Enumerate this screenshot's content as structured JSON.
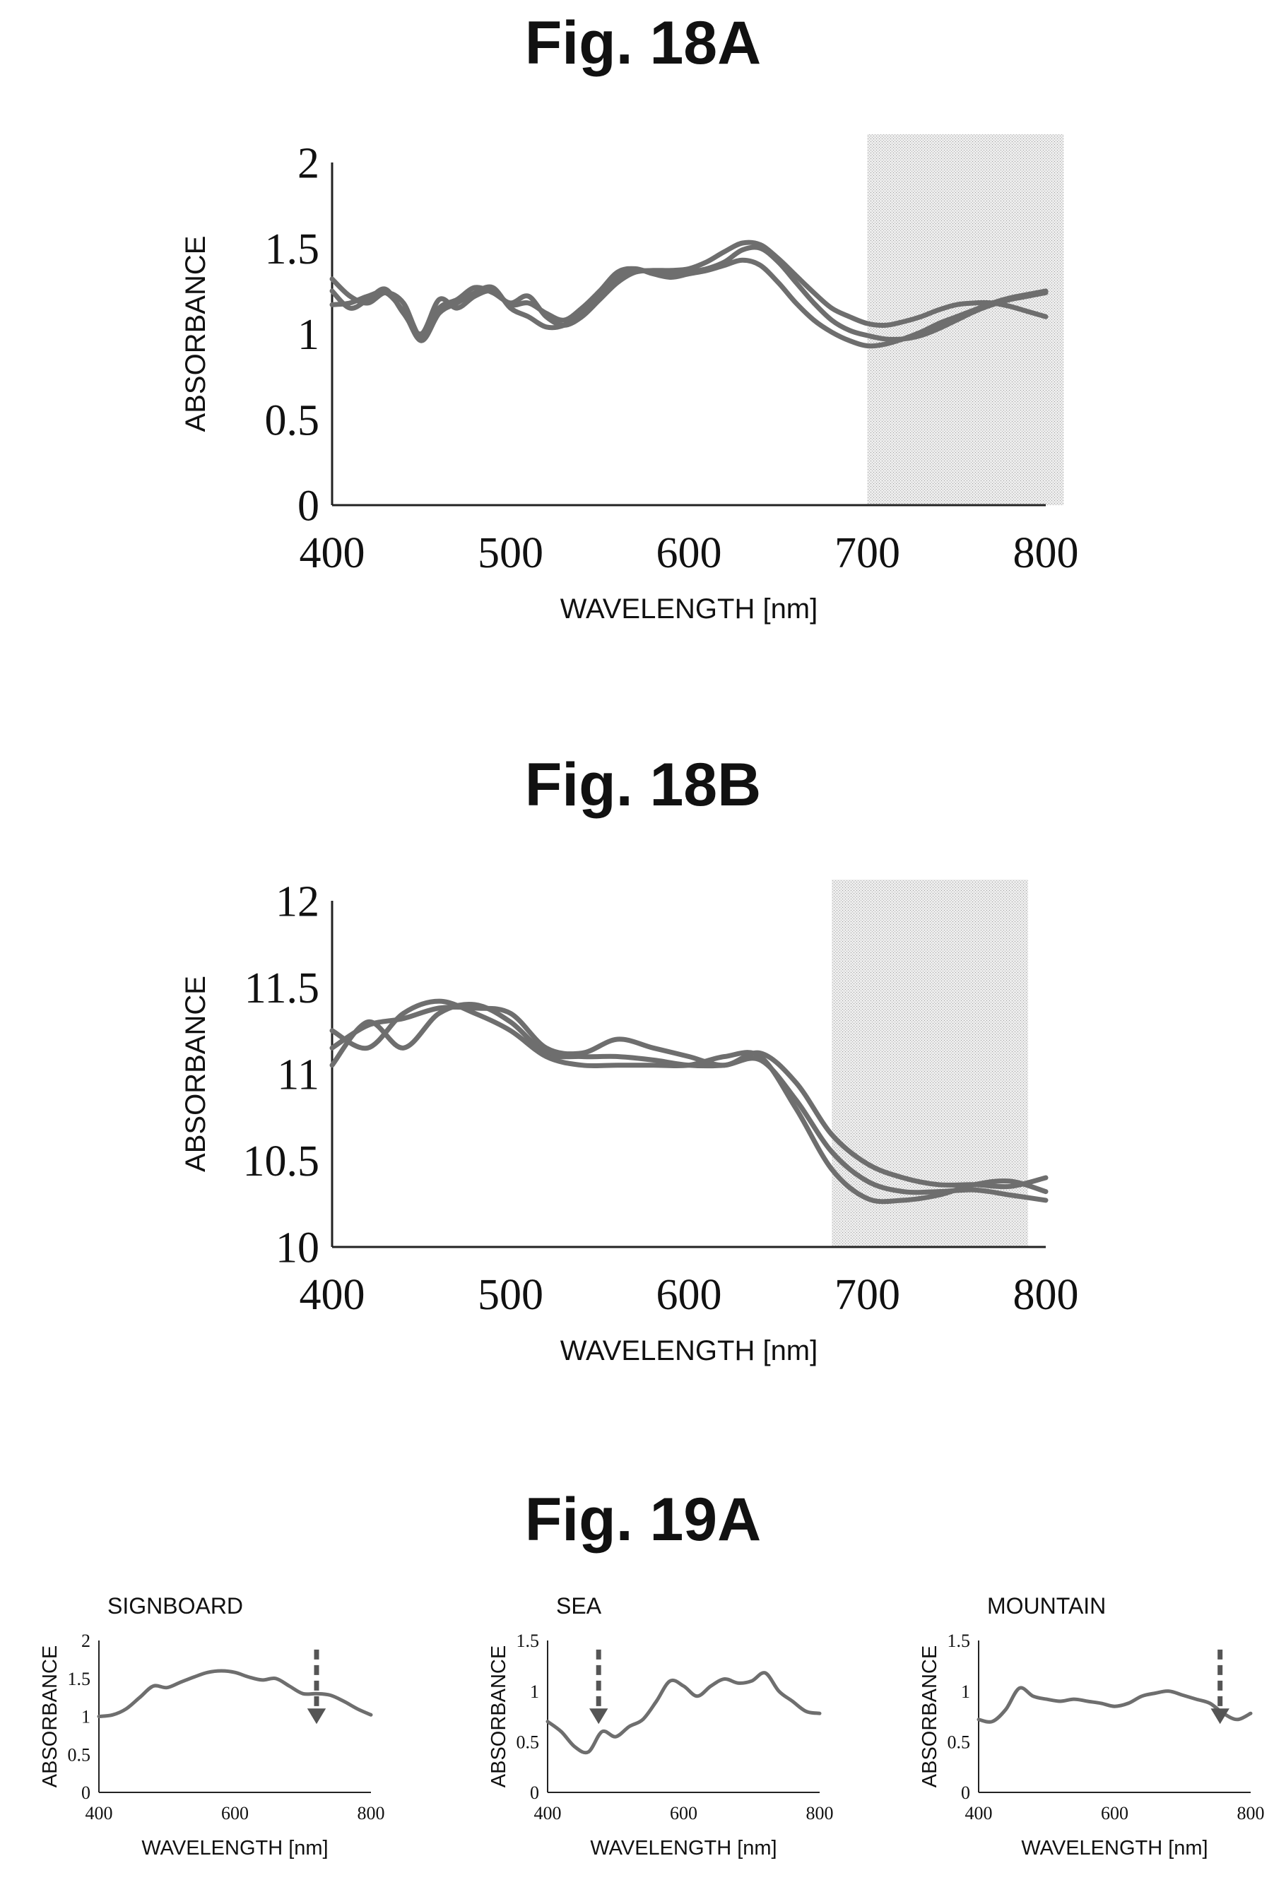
{
  "figures": [
    {
      "id": "fig18a",
      "title": "Fig. 18A",
      "chart_data": {
        "type": "line",
        "xlabel": "WAVELENGTH [nm]",
        "ylabel": "ABSORBANCE",
        "xlim": [
          400,
          800
        ],
        "ylim": [
          0,
          2
        ],
        "xticks": [
          "400",
          "500",
          "600",
          "700",
          "800"
        ],
        "yticks": [
          "0",
          "0.5",
          "1",
          "1.5",
          "2"
        ],
        "shaded_band": [
          700,
          810
        ],
        "grid": false,
        "series_color": "#6e6e6e",
        "series": [
          {
            "x": [
              400,
              410,
              420,
              430,
              440,
              450,
              460,
              470,
              480,
              490,
              500,
              510,
              520,
              530,
              540,
              550,
              560,
              570,
              580,
              590,
              600,
              610,
              620,
              630,
              640,
              650,
              660,
              670,
              680,
              690,
              700,
              710,
              720,
              730,
              740,
              750,
              760,
              770,
              780,
              790,
              800
            ],
            "values": [
              1.17,
              1.18,
              1.22,
              1.24,
              1.13,
              0.96,
              1.12,
              1.18,
              1.24,
              1.27,
              1.15,
              1.1,
              1.04,
              1.05,
              1.12,
              1.22,
              1.33,
              1.37,
              1.36,
              1.35,
              1.36,
              1.38,
              1.42,
              1.49,
              1.5,
              1.42,
              1.3,
              1.18,
              1.08,
              1.02,
              0.99,
              0.97,
              0.97,
              0.99,
              1.03,
              1.08,
              1.13,
              1.17,
              1.2,
              1.22,
              1.24
            ]
          },
          {
            "x": [
              400,
              410,
              420,
              430,
              440,
              450,
              460,
              470,
              480,
              490,
              500,
              510,
              520,
              530,
              540,
              550,
              560,
              570,
              580,
              590,
              600,
              610,
              620,
              630,
              640,
              650,
              660,
              670,
              680,
              690,
              700,
              710,
              720,
              730,
              740,
              750,
              760,
              770,
              780,
              790,
              800
            ],
            "values": [
              1.25,
              1.15,
              1.2,
              1.26,
              1.12,
              1.0,
              1.2,
              1.15,
              1.22,
              1.25,
              1.17,
              1.18,
              1.12,
              1.08,
              1.15,
              1.25,
              1.36,
              1.38,
              1.35,
              1.33,
              1.35,
              1.37,
              1.4,
              1.43,
              1.4,
              1.3,
              1.18,
              1.08,
              1.01,
              0.96,
              0.93,
              0.94,
              0.97,
              1.01,
              1.06,
              1.1,
              1.14,
              1.18,
              1.21,
              1.23,
              1.25
            ]
          },
          {
            "x": [
              400,
              410,
              420,
              430,
              440,
              450,
              460,
              470,
              480,
              490,
              500,
              510,
              520,
              530,
              540,
              550,
              560,
              570,
              580,
              590,
              600,
              610,
              620,
              630,
              640,
              650,
              660,
              670,
              680,
              690,
              700,
              710,
              720,
              730,
              740,
              750,
              760,
              770,
              780,
              790,
              800
            ],
            "values": [
              1.32,
              1.22,
              1.18,
              1.24,
              1.18,
              0.98,
              1.15,
              1.2,
              1.27,
              1.24,
              1.18,
              1.22,
              1.1,
              1.05,
              1.1,
              1.2,
              1.3,
              1.36,
              1.37,
              1.37,
              1.38,
              1.42,
              1.48,
              1.53,
              1.52,
              1.44,
              1.34,
              1.24,
              1.15,
              1.1,
              1.06,
              1.05,
              1.07,
              1.1,
              1.14,
              1.17,
              1.18,
              1.18,
              1.16,
              1.13,
              1.1
            ]
          }
        ]
      }
    },
    {
      "id": "fig18b",
      "title": "Fig. 18B",
      "chart_data": {
        "type": "line",
        "xlabel": "WAVELENGTH [nm]",
        "ylabel": "ABSORBANCE",
        "xlim": [
          400,
          800
        ],
        "ylim": [
          10,
          12
        ],
        "xticks": [
          "400",
          "500",
          "600",
          "700",
          "800"
        ],
        "yticks": [
          "10",
          "10.5",
          "11",
          "11.5",
          "12"
        ],
        "shaded_band": [
          680,
          790
        ],
        "grid": false,
        "series_color": "#6e6e6e",
        "series": [
          {
            "x": [
              400,
              420,
              440,
              460,
              480,
              500,
              520,
              540,
              560,
              580,
              600,
              620,
              640,
              660,
              680,
              700,
              720,
              740,
              760,
              780,
              800
            ],
            "values": [
              11.05,
              11.3,
              11.15,
              11.35,
              11.4,
              11.3,
              11.12,
              11.1,
              11.1,
              11.08,
              11.05,
              11.05,
              11.08,
              10.85,
              10.55,
              10.38,
              10.32,
              10.32,
              10.33,
              10.3,
              10.27
            ]
          },
          {
            "x": [
              400,
              420,
              440,
              460,
              480,
              500,
              520,
              540,
              560,
              580,
              600,
              620,
              640,
              660,
              680,
              700,
              720,
              740,
              760,
              780,
              800
            ],
            "values": [
              11.15,
              11.28,
              11.32,
              11.38,
              11.38,
              11.35,
              11.15,
              11.12,
              11.2,
              11.15,
              11.1,
              11.05,
              11.12,
              10.95,
              10.65,
              10.48,
              10.4,
              10.36,
              10.36,
              10.35,
              10.4
            ]
          },
          {
            "x": [
              400,
              420,
              440,
              460,
              480,
              500,
              520,
              540,
              560,
              580,
              600,
              620,
              640,
              660,
              680,
              700,
              720,
              740,
              760,
              780,
              800
            ],
            "values": [
              11.25,
              11.15,
              11.35,
              11.42,
              11.35,
              11.25,
              11.1,
              11.05,
              11.05,
              11.05,
              11.05,
              11.1,
              11.1,
              10.8,
              10.45,
              10.28,
              10.27,
              10.3,
              10.36,
              10.38,
              10.32
            ]
          }
        ]
      }
    },
    {
      "id": "fig19a",
      "title": "Fig. 19A",
      "panels": [
        {
          "chart_data": {
            "type": "line",
            "title": "SIGNBOARD",
            "xlabel": "WAVELENGTH [nm]",
            "ylabel": "ABSORBANCE",
            "xlim": [
              400,
              800
            ],
            "ylim": [
              0,
              2
            ],
            "xticks": [
              "400",
              "600",
              "800"
            ],
            "yticks": [
              "0",
              "0.5",
              "1",
              "1.5",
              "2"
            ],
            "arrow_x": 720,
            "grid": false,
            "series_color": "#6e6e6e",
            "series": [
              {
                "x": [
                  400,
                  420,
                  440,
                  460,
                  480,
                  500,
                  520,
                  540,
                  560,
                  580,
                  600,
                  620,
                  640,
                  660,
                  680,
                  700,
                  720,
                  740,
                  760,
                  780,
                  800
                ],
                "values": [
                  1.0,
                  1.02,
                  1.1,
                  1.25,
                  1.4,
                  1.38,
                  1.45,
                  1.52,
                  1.58,
                  1.6,
                  1.58,
                  1.52,
                  1.48,
                  1.5,
                  1.4,
                  1.3,
                  1.3,
                  1.28,
                  1.2,
                  1.1,
                  1.02
                ]
              }
            ]
          }
        },
        {
          "chart_data": {
            "type": "line",
            "title": "SEA",
            "xlabel": "WAVELENGTH [nm]",
            "ylabel": "ABSORBANCE",
            "xlim": [
              400,
              800
            ],
            "ylim": [
              0,
              1.5
            ],
            "xticks": [
              "400",
              "600",
              "800"
            ],
            "yticks": [
              "0",
              "0.5",
              "1",
              "1.5"
            ],
            "arrow_x": 475,
            "grid": false,
            "series_color": "#6e6e6e",
            "series": [
              {
                "x": [
                  400,
                  420,
                  440,
                  460,
                  480,
                  500,
                  520,
                  540,
                  560,
                  580,
                  600,
                  620,
                  640,
                  660,
                  680,
                  700,
                  720,
                  740,
                  760,
                  780,
                  800
                ],
                "values": [
                  0.7,
                  0.6,
                  0.45,
                  0.4,
                  0.6,
                  0.55,
                  0.65,
                  0.72,
                  0.9,
                  1.1,
                  1.05,
                  0.95,
                  1.05,
                  1.12,
                  1.08,
                  1.1,
                  1.18,
                  1.0,
                  0.9,
                  0.8,
                  0.78
                ]
              }
            ]
          }
        },
        {
          "chart_data": {
            "type": "line",
            "title": "MOUNTAIN",
            "xlabel": "WAVELENGTH [nm]",
            "ylabel": "ABSORBANCE",
            "xlim": [
              400,
              800
            ],
            "ylim": [
              0,
              1.5
            ],
            "xticks": [
              "400",
              "600",
              "800"
            ],
            "yticks": [
              "0",
              "0.5",
              "1",
              "1.5"
            ],
            "arrow_x": 755,
            "grid": false,
            "series_color": "#6e6e6e",
            "series": [
              {
                "x": [
                  400,
                  420,
                  440,
                  460,
                  480,
                  500,
                  520,
                  540,
                  560,
                  580,
                  600,
                  620,
                  640,
                  660,
                  680,
                  700,
                  720,
                  740,
                  760,
                  780,
                  800
                ],
                "values": [
                  0.72,
                  0.7,
                  0.82,
                  1.03,
                  0.95,
                  0.92,
                  0.9,
                  0.92,
                  0.9,
                  0.88,
                  0.85,
                  0.88,
                  0.95,
                  0.98,
                  1.0,
                  0.96,
                  0.92,
                  0.88,
                  0.78,
                  0.72,
                  0.78
                ]
              }
            ]
          }
        }
      ]
    }
  ]
}
